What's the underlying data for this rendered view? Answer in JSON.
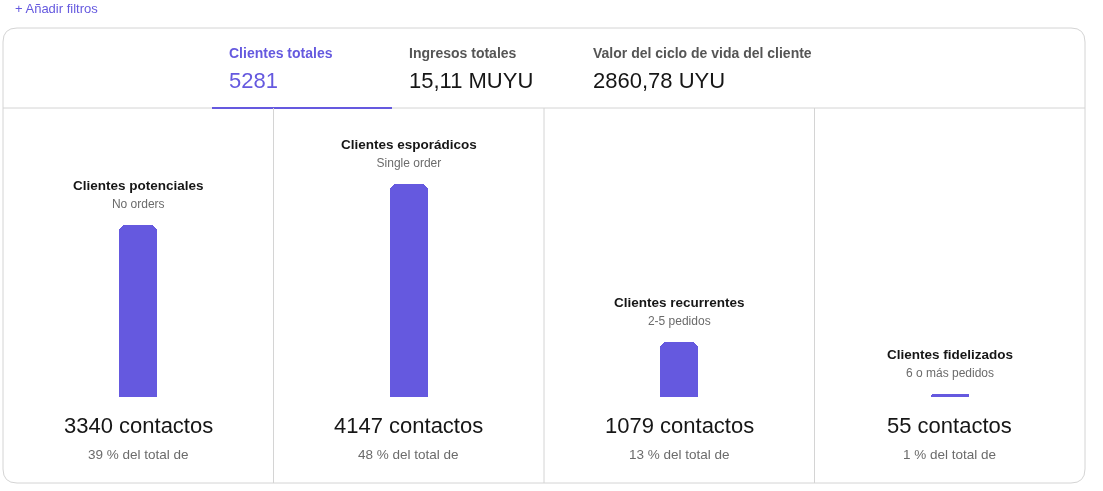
{
  "chart_data": {
    "type": "bar",
    "categories": [
      "Clientes potenciales\nNo orders",
      "Clientes esporádicos\nSingle order",
      "Clientes recurrentes\n2-5 pedidos",
      "Clientes fidelizados\n6 o más pedidos"
    ],
    "values": [
      3340,
      4147,
      1079,
      55
    ],
    "color": "#6559df",
    "value_labels": [
      "3340 contactos\n39 % del total de",
      "4147 contactos\n48 % del total de",
      "1079 contactos\n13 % del total de",
      "55 contactos\n1 % del total de"
    ],
    "tick_labels": "x",
    "annotations": [
      "+ Añadir filtros",
      "Clientes totales",
      "5281",
      "Ingresos totales",
      "15,11 MUYU",
      "Valor del ciclo de vida del cliente",
      "2860,78 UYU"
    ]
  }
}
